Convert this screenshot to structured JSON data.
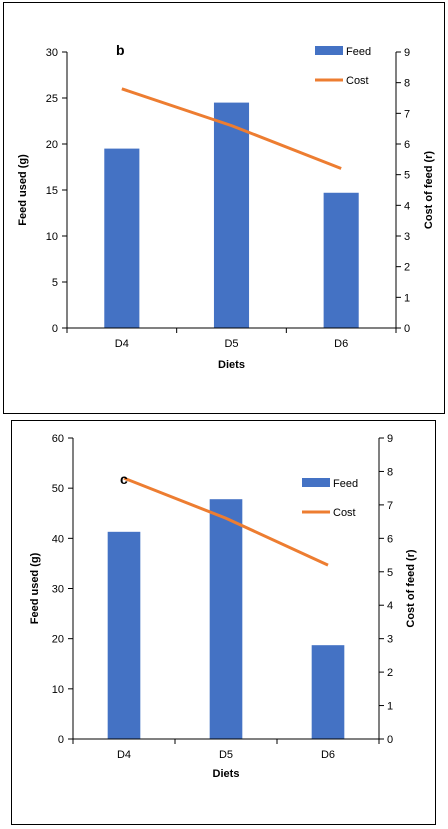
{
  "colors": {
    "feed": "#4472C4",
    "cost": "#ED7D31",
    "axis": "#000000"
  },
  "chart_data": [
    {
      "type": "bar",
      "panel_label": "b",
      "categories": [
        "D4",
        "D5",
        "D6"
      ],
      "series": [
        {
          "name": "Feed",
          "type": "bar",
          "axis": "left",
          "values": [
            19.5,
            24.5,
            14.7
          ]
        },
        {
          "name": "Cost",
          "type": "line",
          "axis": "right",
          "values": [
            7.8,
            6.6,
            5.2
          ]
        }
      ],
      "xlabel": "Diets",
      "ylabel": "Feed used (g)",
      "y2label": "Cost of feed (r)",
      "ylim": [
        0,
        30
      ],
      "yticks": [
        0,
        5,
        10,
        15,
        20,
        25,
        30
      ],
      "y2lim": [
        0,
        9
      ],
      "y2ticks": [
        0,
        1,
        2,
        3,
        4,
        5,
        6,
        7,
        8,
        9
      ],
      "grid": false,
      "legend": "top-right"
    },
    {
      "type": "bar",
      "panel_label": "c",
      "categories": [
        "D4",
        "D5",
        "D6"
      ],
      "series": [
        {
          "name": "Feed",
          "type": "bar",
          "axis": "left",
          "values": [
            41.3,
            47.8,
            18.7
          ]
        },
        {
          "name": "Cost",
          "type": "line",
          "axis": "right",
          "values": [
            7.8,
            6.6,
            5.2
          ]
        }
      ],
      "xlabel": "Diets",
      "ylabel": "Feed used (g)",
      "y2label": "Cost of feed (r)",
      "ylim": [
        0,
        60
      ],
      "yticks": [
        0,
        10,
        20,
        30,
        40,
        50,
        60
      ],
      "y2lim": [
        0,
        9
      ],
      "y2ticks": [
        0,
        1,
        2,
        3,
        4,
        5,
        6,
        7,
        8,
        9
      ],
      "grid": false,
      "legend": "top-right"
    }
  ]
}
